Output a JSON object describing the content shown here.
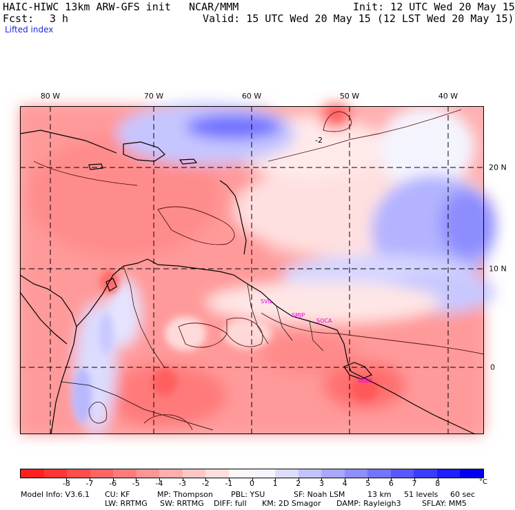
{
  "header": {
    "model": "HAIC-HIWC 13km ARW-GFS init",
    "org": "NCAR/MMM",
    "init": "Init: 12 UTC Wed 20 May 15",
    "fcst_label": "Fcst:",
    "fcst_value": "3 h",
    "valid": "Valid: 15 UTC Wed 20 May 15 (12 LST Wed 20 May 15)",
    "field": "Lifted index"
  },
  "map": {
    "lon_labels": [
      "80 W",
      "70 W",
      "60 W",
      "50 W",
      "40 W"
    ],
    "lat_labels": [
      "20 N",
      "10 N",
      "0"
    ],
    "contour_label": "-2",
    "stations": [
      "SVIL",
      "SMJP",
      "SOCA",
      "SBBE"
    ]
  },
  "colorbar": {
    "ticks": [
      "-8",
      "-7",
      "-6",
      "-5",
      "-4",
      "-3",
      "-2",
      "-1",
      "0",
      "1",
      "2",
      "3",
      "4",
      "5",
      "6",
      "7",
      "8"
    ],
    "unit": "°C",
    "colors": [
      "#ff1f1f",
      "#ff3535",
      "#ff4d4d",
      "#ff6464",
      "#ff7b7b",
      "#ff9494",
      "#ffadad",
      "#ffc6c6",
      "#ffdede",
      "#fff5f5",
      "#f5f5ff",
      "#dcdcff",
      "#c2c2ff",
      "#a8a8ff",
      "#8e8eff",
      "#7474ff",
      "#5858ff",
      "#3c3cff",
      "#1f1fff",
      "#0000ee"
    ]
  },
  "footer": {
    "line1": [
      "Model Info: V3.6.1",
      "CU: KF",
      "MP: Thompson",
      "PBL: YSU",
      "SF: Noah LSM",
      "13 km",
      "51 levels",
      "60 sec"
    ],
    "line2": [
      "LW: RRTMG",
      "SW: RRTMG",
      "DIFF: full",
      "KM: 2D Smagor",
      "DAMP: Rayleigh3",
      "SFLAY: MM5"
    ]
  }
}
